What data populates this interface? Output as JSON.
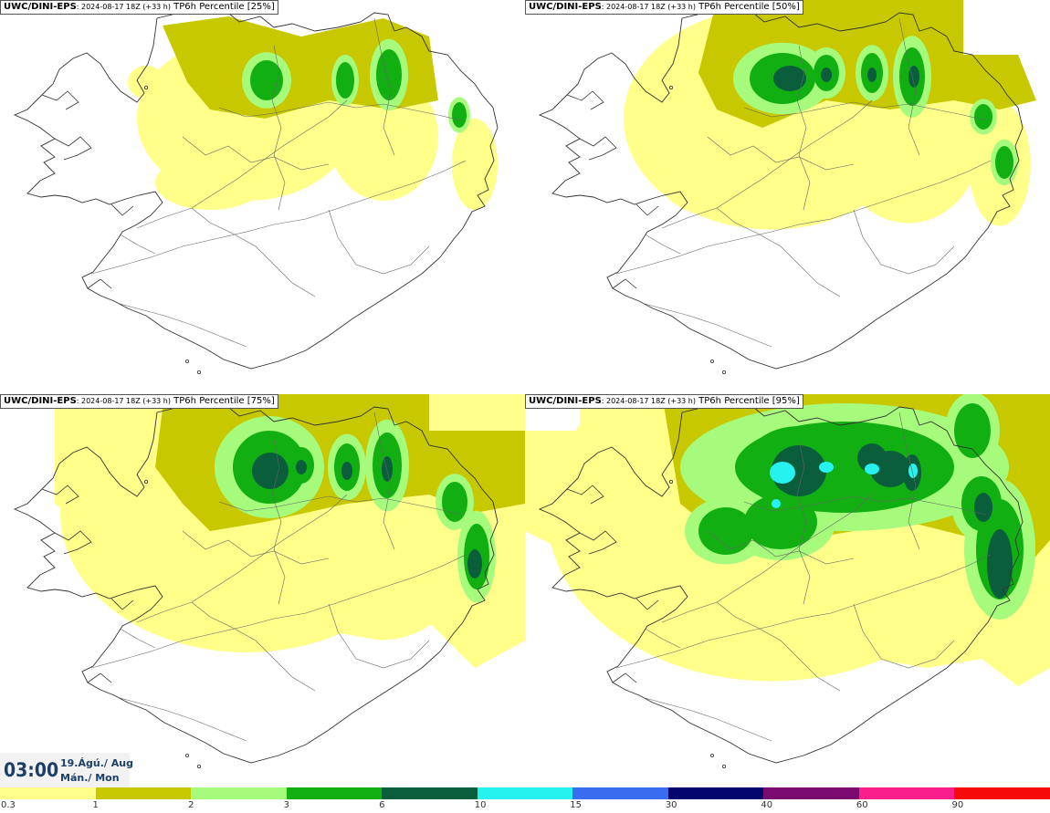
{
  "panels": [
    {
      "model": "UWC/DINI-EPS",
      "run": ": 2024-08-17 18Z (+33 h)",
      "param": "TP6h Percentile [25%]",
      "level": 0
    },
    {
      "model": "UWC/DINI-EPS",
      "run": ": 2024-08-17 18Z (+33 h)",
      "param": "TP6h Percentile [50%]",
      "level": 1
    },
    {
      "model": "UWC/DINI-EPS",
      "run": ": 2024-08-17 18Z (+33 h)",
      "param": "TP6h Percentile [75%]",
      "level": 2
    },
    {
      "model": "UWC/DINI-EPS",
      "run": ": 2024-08-17 18Z (+33 h)",
      "param": "TP6h Percentile [95%]",
      "level": 3
    }
  ],
  "valid_time": {
    "time": "03:00",
    "date_line1": "19.Ágú./ Aug",
    "date_line2": "Mán./ Mon"
  },
  "legend": {
    "colors": [
      "#ffff8a",
      "#c8c800",
      "#a6fb7d",
      "#12af12",
      "#0b5e3c",
      "#26f2f0",
      "#3a6cf0",
      "#05056e",
      "#7a0a6e",
      "#fa1e8c",
      "#f70a0a"
    ],
    "labels": [
      "0.3",
      "1",
      "2",
      "3",
      "6",
      "10",
      "15",
      "30",
      "40",
      "60",
      "90"
    ]
  }
}
